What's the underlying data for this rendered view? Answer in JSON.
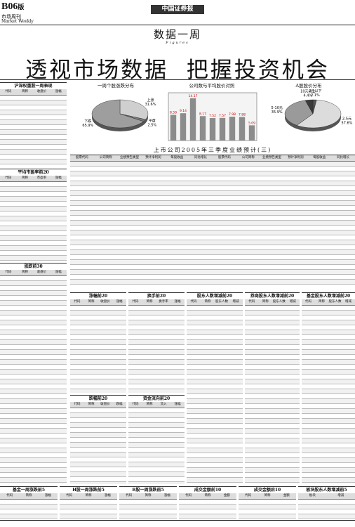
{
  "header": {
    "page": "B06",
    "page_suffix": "版",
    "section": "市场周刊",
    "section_en": "Market Weekly",
    "masthead": "中国证券报"
  },
  "feature": {
    "title": "数据一周",
    "subtitle": "Figures",
    "headline": "透视市场数据  把握投资机会"
  },
  "charts": [
    {
      "type": "pie",
      "title": "一周个股涨跌分布",
      "categories": [
        "上涨",
        "平盘",
        "下跌"
      ],
      "values": [
        31.6,
        2.5,
        65.9
      ],
      "value_labels": [
        "31.6%",
        "2.5%",
        "65.9%"
      ],
      "colors": [
        "#cfcfcf",
        "#7a7a7a",
        "#9e9e9e"
      ]
    },
    {
      "type": "bar",
      "title": "公司数与平均股价对照",
      "values": [
        8.59,
        9.14,
        14.17,
        8.17,
        7.52,
        7.57,
        7.98,
        7.88,
        5.09
      ],
      "ylim": [
        0,
        16
      ],
      "color": "#8c8c8c"
    },
    {
      "type": "pie",
      "title": "A股股价分布",
      "categories": [
        "2元以下",
        "2-5元",
        "5-10元",
        "10元以上"
      ],
      "values": [
        2.1,
        57.6,
        35.9,
        4.4
      ],
      "value_labels": [
        "2.1%",
        "57.6%",
        "35.9%",
        "4.4%"
      ],
      "colors": [
        "#555555",
        "#dcdcdc",
        "#9a9a9a",
        "#3a3a3a"
      ]
    }
  ],
  "big_table": {
    "title": "上市公司2005年三季度业绩预计(三)",
    "columns": [
      "股票代码",
      "公司简称",
      "业绩预告类型",
      "预计净利润",
      "每股收益",
      "同比增长"
    ]
  },
  "tables": [
    {
      "title": "沪深权重股一周表现",
      "columns": [
        "代码",
        "简称",
        "收盘价",
        "涨幅"
      ]
    },
    {
      "title": "平均市盈率前20",
      "columns": [
        "代码",
        "简称",
        "市盈率",
        "涨幅"
      ]
    },
    {
      "title": "涨跌前30",
      "columns": [
        "代码",
        "简称",
        "收盘价",
        "涨幅"
      ]
    },
    {
      "title": "涨幅前20",
      "columns": [
        "代码",
        "简称",
        "收盘价",
        "涨幅"
      ]
    },
    {
      "title": "换手前20",
      "columns": [
        "代码",
        "简称",
        "换手率",
        "涨幅"
      ]
    },
    {
      "title": "股东人数增减前20",
      "columns": [
        "代码",
        "简称",
        "股东人数",
        "增减"
      ]
    },
    {
      "title": "券商股东人数增减前20",
      "columns": [
        "代码",
        "简称",
        "股东人数",
        "增减"
      ]
    },
    {
      "title": "基金股东人数增减前20",
      "columns": [
        "代码",
        "简称",
        "股东人数",
        "增减"
      ]
    },
    {
      "title": "跌幅前20",
      "columns": [
        "代码",
        "简称",
        "收盘价",
        "跌幅"
      ]
    },
    {
      "title": "资金流向前20",
      "columns": [
        "代码",
        "简称",
        "流入",
        "涨幅"
      ]
    },
    {
      "title": "基金一周涨跌前5",
      "columns": [
        "代码",
        "简称",
        "涨幅"
      ]
    },
    {
      "title": "H股一周涨跌前5",
      "columns": [
        "代码",
        "简称",
        "涨幅"
      ]
    },
    {
      "title": "B股一周涨跌前5",
      "columns": [
        "代码",
        "简称",
        "涨幅"
      ]
    },
    {
      "title": "成交金额前10",
      "columns": [
        "代码",
        "简称",
        "金额"
      ]
    },
    {
      "title": "成交金额后10",
      "columns": [
        "代码",
        "简称",
        "金额"
      ]
    },
    {
      "title": "板块股东人数增减前5",
      "columns": [
        "板块",
        "增减"
      ]
    }
  ]
}
